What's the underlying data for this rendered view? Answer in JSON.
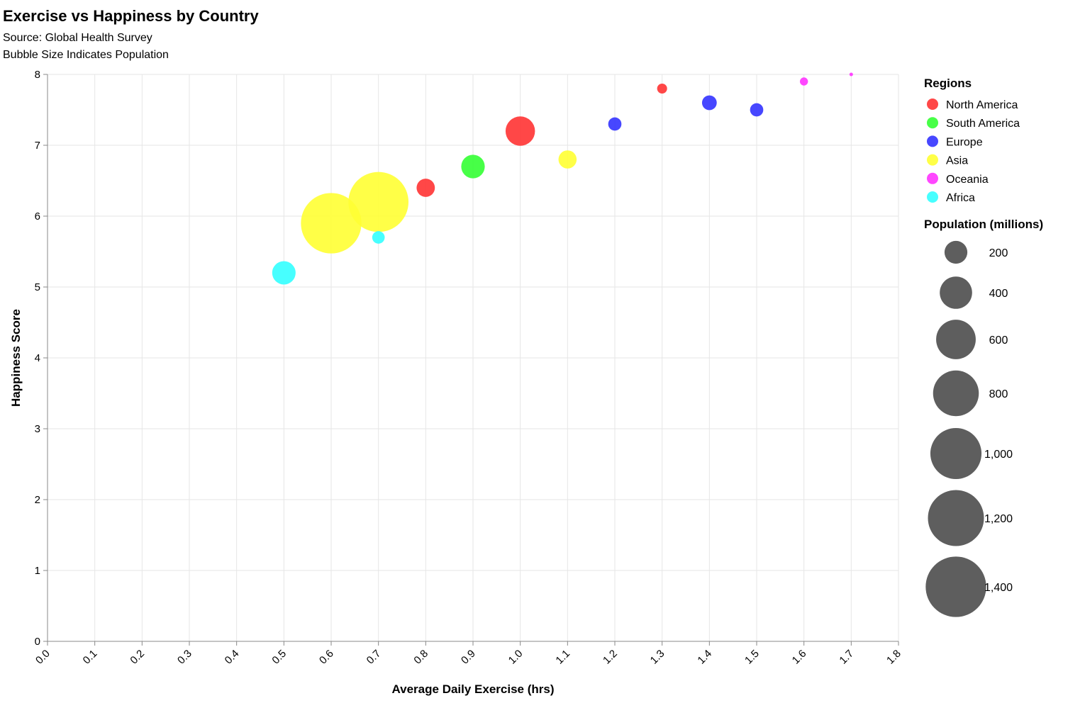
{
  "chart_data": {
    "type": "scatter",
    "title": "Exercise vs Happiness by Country",
    "subtitle_lines": [
      "Source: Global Health Survey",
      "Bubble Size Indicates Population"
    ],
    "xlabel": "Average Daily Exercise (hrs)",
    "ylabel": "Happiness Score",
    "xlim": [
      0,
      1.8
    ],
    "ylim": [
      0,
      8
    ],
    "x_ticks": [
      "0.0",
      "0.1",
      "0.2",
      "0.3",
      "0.4",
      "0.5",
      "0.6",
      "0.7",
      "0.8",
      "0.9",
      "1.0",
      "1.1",
      "1.2",
      "1.3",
      "1.4",
      "1.5",
      "1.6",
      "1.7",
      "1.8"
    ],
    "y_ticks": [
      "0",
      "1",
      "2",
      "3",
      "4",
      "5",
      "6",
      "7",
      "8"
    ],
    "grid": true,
    "legend_position": "right",
    "color_legend_title": "Regions",
    "size_legend_title": "Population (millions)",
    "regions": [
      {
        "name": "North America",
        "color": "#ff3333"
      },
      {
        "name": "South America",
        "color": "#33ff33"
      },
      {
        "name": "Europe",
        "color": "#3333ff"
      },
      {
        "name": "Asia",
        "color": "#ffff33"
      },
      {
        "name": "Oceania",
        "color": "#ff33ff"
      },
      {
        "name": "Africa",
        "color": "#33ffff"
      }
    ],
    "size_legend": [
      {
        "value": 200,
        "label": "200"
      },
      {
        "value": 400,
        "label": "400"
      },
      {
        "value": 600,
        "label": "600"
      },
      {
        "value": 800,
        "label": "800"
      },
      {
        "value": 1000,
        "label": "1,000"
      },
      {
        "value": 1200,
        "label": "1,200"
      },
      {
        "value": 1400,
        "label": "1,400"
      }
    ],
    "points": [
      {
        "region": "Africa",
        "x": 0.5,
        "y": 5.2,
        "population": 210
      },
      {
        "region": "Asia",
        "x": 0.6,
        "y": 5.9,
        "population": 1400
      },
      {
        "region": "Asia",
        "x": 0.7,
        "y": 6.2,
        "population": 1380
      },
      {
        "region": "Africa",
        "x": 0.7,
        "y": 5.7,
        "population": 60
      },
      {
        "region": "North America",
        "x": 0.8,
        "y": 6.4,
        "population": 128
      },
      {
        "region": "South America",
        "x": 0.9,
        "y": 6.7,
        "population": 212
      },
      {
        "region": "North America",
        "x": 1.0,
        "y": 7.2,
        "population": 331
      },
      {
        "region": "Asia",
        "x": 1.1,
        "y": 6.8,
        "population": 126
      },
      {
        "region": "Europe",
        "x": 1.2,
        "y": 7.3,
        "population": 67
      },
      {
        "region": "North America",
        "x": 1.3,
        "y": 7.8,
        "population": 38
      },
      {
        "region": "Europe",
        "x": 1.4,
        "y": 7.6,
        "population": 83
      },
      {
        "region": "Europe",
        "x": 1.5,
        "y": 7.5,
        "population": 67
      },
      {
        "region": "Oceania",
        "x": 1.6,
        "y": 7.9,
        "population": 25
      },
      {
        "region": "Oceania",
        "x": 1.7,
        "y": 8.0,
        "population": 5
      }
    ]
  }
}
